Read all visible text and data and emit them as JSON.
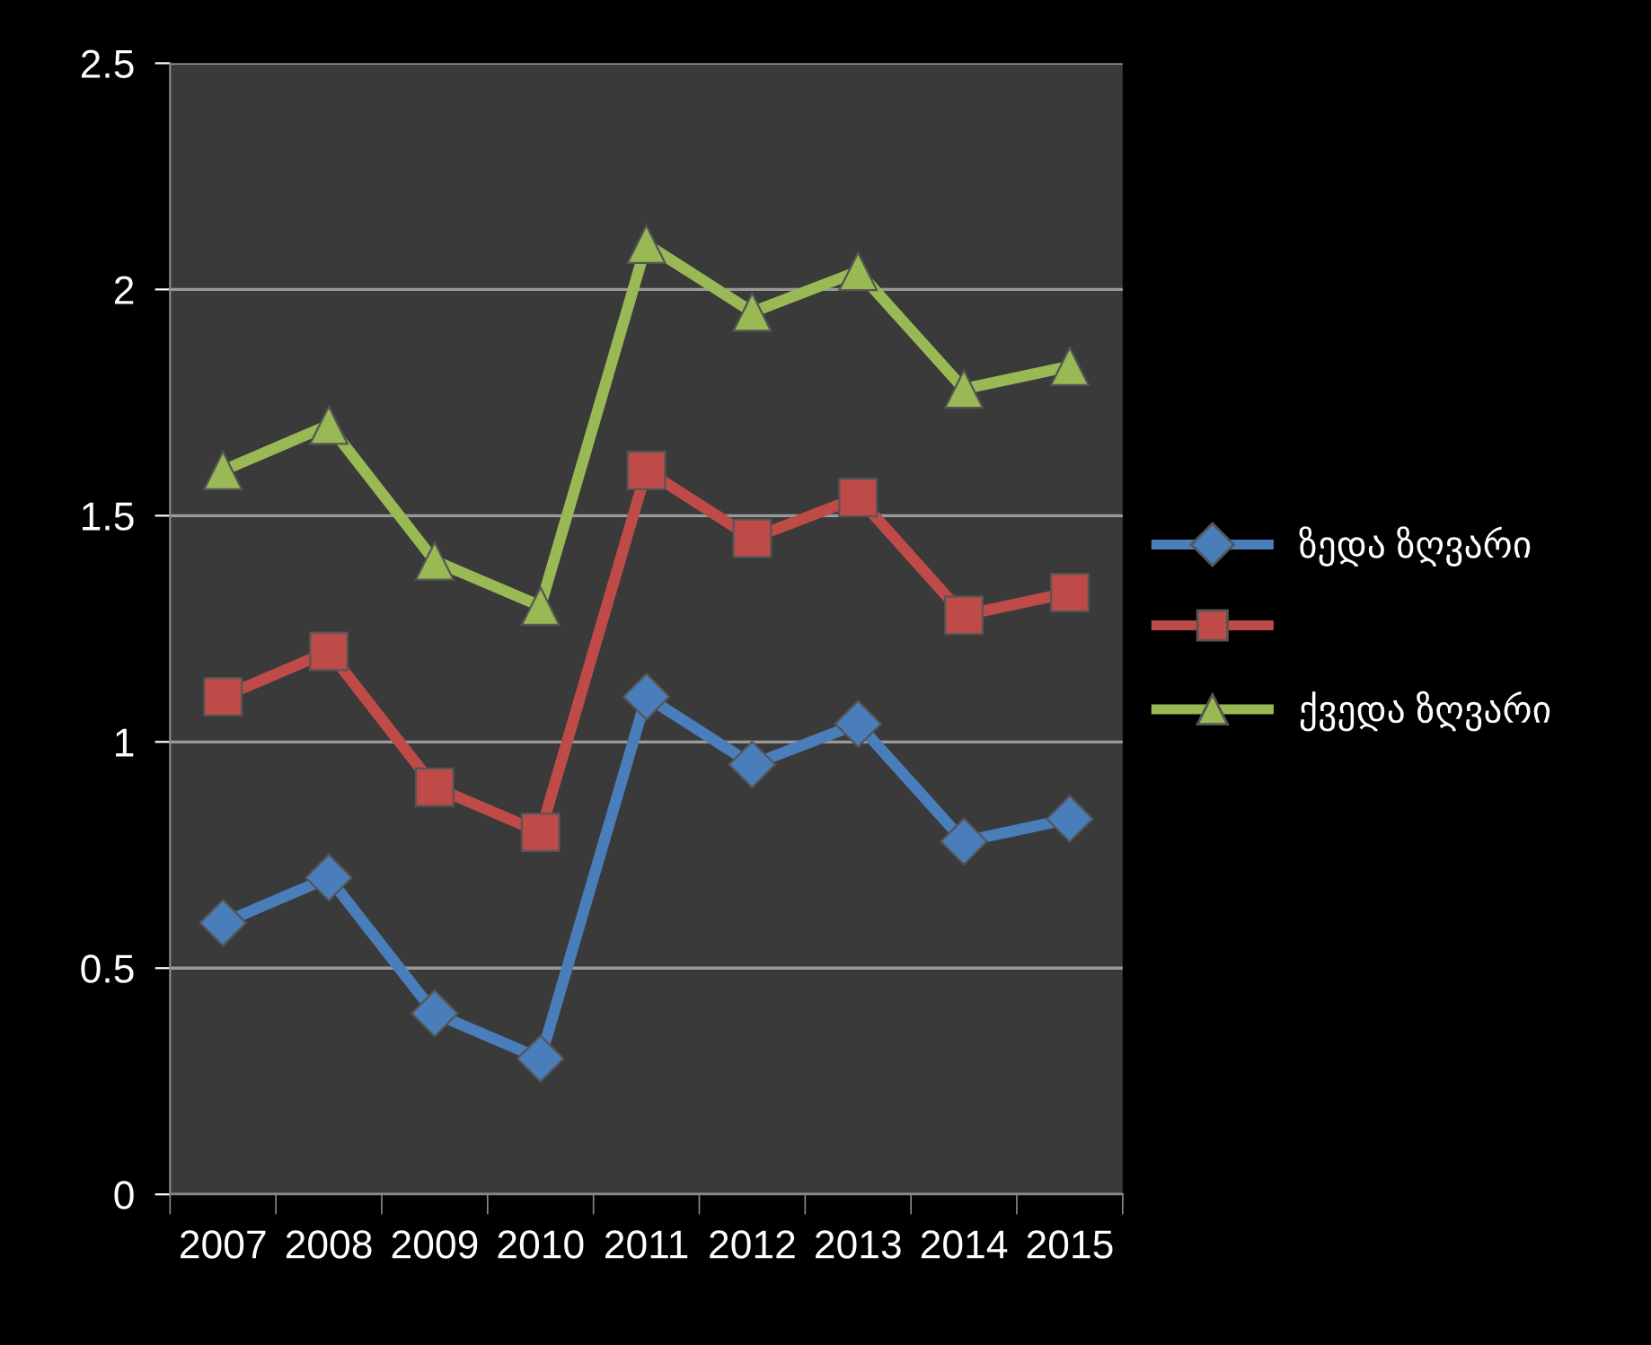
{
  "chart_data": {
    "type": "line",
    "categories": [
      "2007",
      "2008",
      "2009",
      "2010",
      "2011",
      "2012",
      "2013",
      "2014",
      "2015"
    ],
    "series": [
      {
        "name": "ზედა ზღვარი",
        "color": "#4a7ebb",
        "marker": "diamond",
        "values": [
          0.6,
          0.7,
          0.4,
          0.3,
          1.1,
          0.95,
          1.04,
          0.78,
          0.83
        ]
      },
      {
        "color": "#be4b48",
        "marker": "square",
        "values": [
          1.1,
          1.2,
          0.9,
          0.8,
          1.6,
          1.45,
          1.54,
          1.28,
          1.33
        ]
      },
      {
        "name": "ქვედა ზღვარი",
        "color": "#98b954",
        "marker": "triangle",
        "values": [
          1.6,
          1.7,
          1.4,
          1.3,
          2.1,
          1.95,
          2.04,
          1.78,
          1.83
        ]
      }
    ],
    "ylim": [
      0,
      2.5
    ],
    "yticks": [
      0,
      0.5,
      1,
      1.5,
      2,
      2.5
    ],
    "grid": "y",
    "legend": "right"
  }
}
